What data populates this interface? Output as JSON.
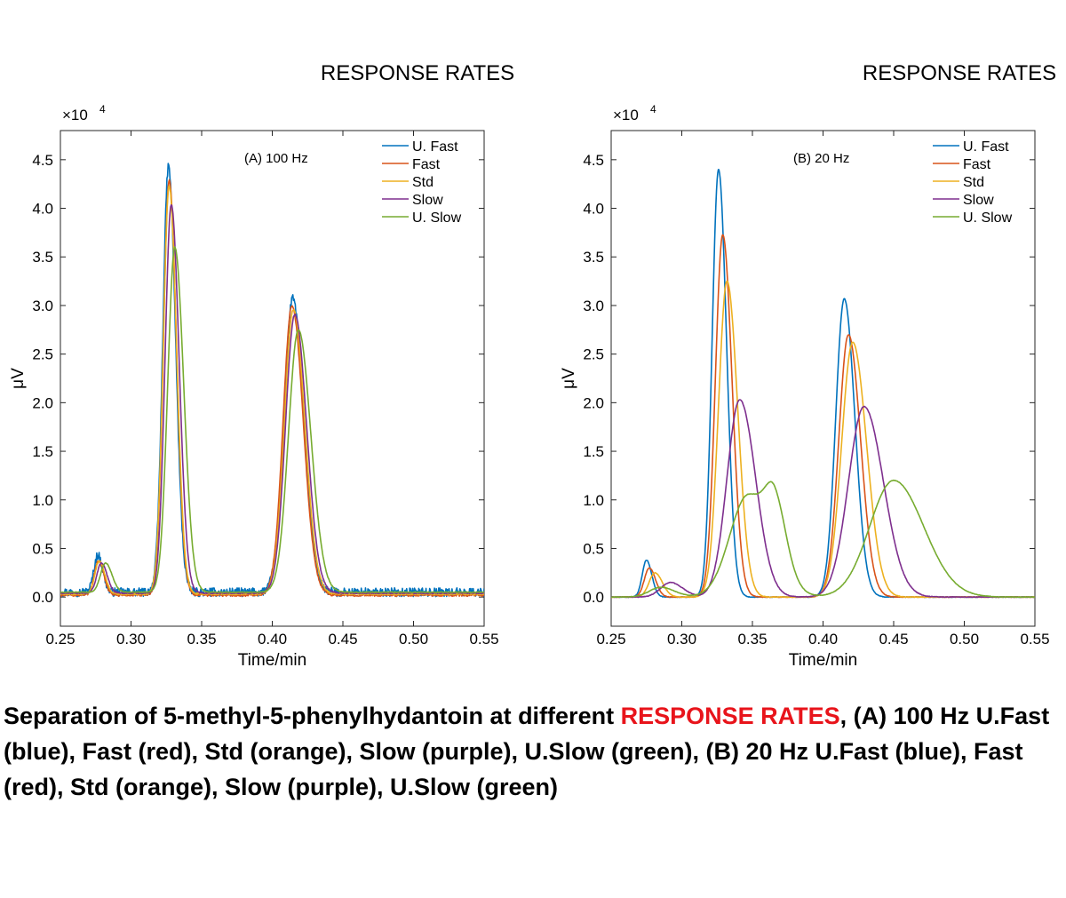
{
  "caption": {
    "before": "Separation of 5-methyl-5-phenylhydantoin at different ",
    "highlight": "RESPONSE RATES",
    "after": ", (A) 100 Hz U.Fast (blue), Fast (red), Std (orange), Slow (purple), U.Slow (green), (B) 20 Hz U.Fast (blue), Fast (red), Std (orange), Slow (purple), U.Slow (green)",
    "highlight_color": "#e8141b"
  },
  "chart_data": [
    {
      "type": "line",
      "title": "RESPONSE RATES",
      "annotation": "(A) 100 Hz",
      "xlabel": "Time/min",
      "ylabel": "μV",
      "y_multiplier": "×10",
      "y_multiplier_exp": "4",
      "xlim": [
        0.25,
        0.55
      ],
      "ylim": [
        -0.3,
        4.8
      ],
      "xticks": [
        "0.25",
        "0.30",
        "0.35",
        "0.40",
        "0.45",
        "0.50",
        "0.55"
      ],
      "yticks": [
        "0.0",
        "0.5",
        "1.0",
        "1.5",
        "2.0",
        "2.5",
        "3.0",
        "3.5",
        "4.0",
        "4.5"
      ],
      "legend_position": "top-right",
      "series": [
        {
          "name": "U. Fast",
          "color": "#0072bd",
          "noise": 0.045,
          "baseline": 0.05,
          "peaks": [
            {
              "center": 0.2765,
              "height": 0.38,
              "sigma": 0.0028
            },
            {
              "center": 0.3265,
              "height": 4.38,
              "sigma": 0.004
            },
            {
              "center": 0.4145,
              "height": 3.02,
              "sigma": 0.0062
            }
          ]
        },
        {
          "name": "Fast",
          "color": "#d95319",
          "noise": 0.012,
          "baseline": 0.02,
          "peaks": [
            {
              "center": 0.277,
              "height": 0.35,
              "sigma": 0.003
            },
            {
              "center": 0.327,
              "height": 4.27,
              "sigma": 0.0041
            },
            {
              "center": 0.414,
              "height": 2.98,
              "sigma": 0.0063
            }
          ]
        },
        {
          "name": "Std",
          "color": "#edb120",
          "noise": 0.008,
          "baseline": 0.03,
          "peaks": [
            {
              "center": 0.2775,
              "height": 0.34,
              "sigma": 0.0031
            },
            {
              "center": 0.327,
              "height": 4.2,
              "sigma": 0.0042
            },
            {
              "center": 0.415,
              "height": 2.93,
              "sigma": 0.0064
            }
          ]
        },
        {
          "name": "Slow",
          "color": "#7e2f8e",
          "noise": 0.006,
          "baseline": 0.04,
          "peaks": [
            {
              "center": 0.279,
              "height": 0.31,
              "sigma": 0.0032
            },
            {
              "center": 0.3285,
              "height": 4.0,
              "sigma": 0.0044
            },
            {
              "center": 0.416,
              "height": 2.87,
              "sigma": 0.0066
            }
          ]
        },
        {
          "name": "U. Slow",
          "color": "#77ac30",
          "noise": 0.004,
          "baseline": 0.05,
          "peaks": [
            {
              "center": 0.282,
              "height": 0.3,
              "sigma": 0.0036
            },
            {
              "center": 0.331,
              "height": 3.55,
              "sigma": 0.005
            },
            {
              "center": 0.4185,
              "height": 2.7,
              "sigma": 0.007
            }
          ]
        }
      ]
    },
    {
      "type": "line",
      "title": "RESPONSE RATES",
      "annotation": "(B) 20 Hz",
      "xlabel": "Time/min",
      "ylabel": "μV",
      "y_multiplier": "×10",
      "y_multiplier_exp": "4",
      "xlim": [
        0.25,
        0.55
      ],
      "ylim": [
        -0.3,
        4.8
      ],
      "xticks": [
        "0.25",
        "0.30",
        "0.35",
        "0.40",
        "0.45",
        "0.50",
        "0.55"
      ],
      "yticks": [
        "0.0",
        "0.5",
        "1.0",
        "1.5",
        "2.0",
        "2.5",
        "3.0",
        "3.5",
        "4.0",
        "4.5"
      ],
      "legend_position": "top-right",
      "series": [
        {
          "name": "U. Fast",
          "color": "#0072bd",
          "noise": 0.003,
          "baseline": 0.0,
          "peaks": [
            {
              "center": 0.275,
              "height": 0.38,
              "sigma": 0.003
            },
            {
              "center": 0.326,
              "height": 4.4,
              "sigma": 0.0045
            },
            {
              "center": 0.415,
              "height": 3.07,
              "sigma": 0.006
            }
          ]
        },
        {
          "name": "Fast",
          "color": "#d95319",
          "noise": 0.003,
          "baseline": 0.0,
          "peaks": [
            {
              "center": 0.277,
              "height": 0.3,
              "sigma": 0.0035
            },
            {
              "center": 0.329,
              "height": 3.73,
              "sigma": 0.0052
            },
            {
              "center": 0.418,
              "height": 2.7,
              "sigma": 0.0068
            }
          ]
        },
        {
          "name": "Std",
          "color": "#edb120",
          "noise": 0.003,
          "baseline": 0.0,
          "peaks": [
            {
              "center": 0.281,
              "height": 0.25,
              "sigma": 0.0042
            },
            {
              "center": 0.332,
              "height": 3.25,
              "sigma": 0.006
            },
            {
              "center": 0.421,
              "height": 2.62,
              "sigma": 0.0078
            }
          ]
        },
        {
          "name": "Slow",
          "color": "#7e2f8e",
          "noise": 0.003,
          "baseline": 0.0,
          "peaks": [
            {
              "center": 0.292,
              "height": 0.15,
              "sigma": 0.007
            },
            {
              "center": 0.341,
              "height": 2.03,
              "sigma": 0.009
            },
            {
              "center": 0.429,
              "height": 1.96,
              "sigma": 0.011
            }
          ]
        },
        {
          "name": "U. Slow",
          "color": "#77ac30",
          "noise": 0.002,
          "baseline": 0.0,
          "peaks": [
            {
              "center": 0.285,
              "height": 0.1,
              "sigma": 0.008
            },
            {
              "center": 0.347,
              "height": 1.05,
              "sigma": 0.013
            },
            {
              "center": 0.366,
              "height": 0.6,
              "sigma": 0.0065
            },
            {
              "center": 0.45,
              "height": 1.2,
              "sigma": 0.017
            }
          ]
        }
      ]
    }
  ]
}
